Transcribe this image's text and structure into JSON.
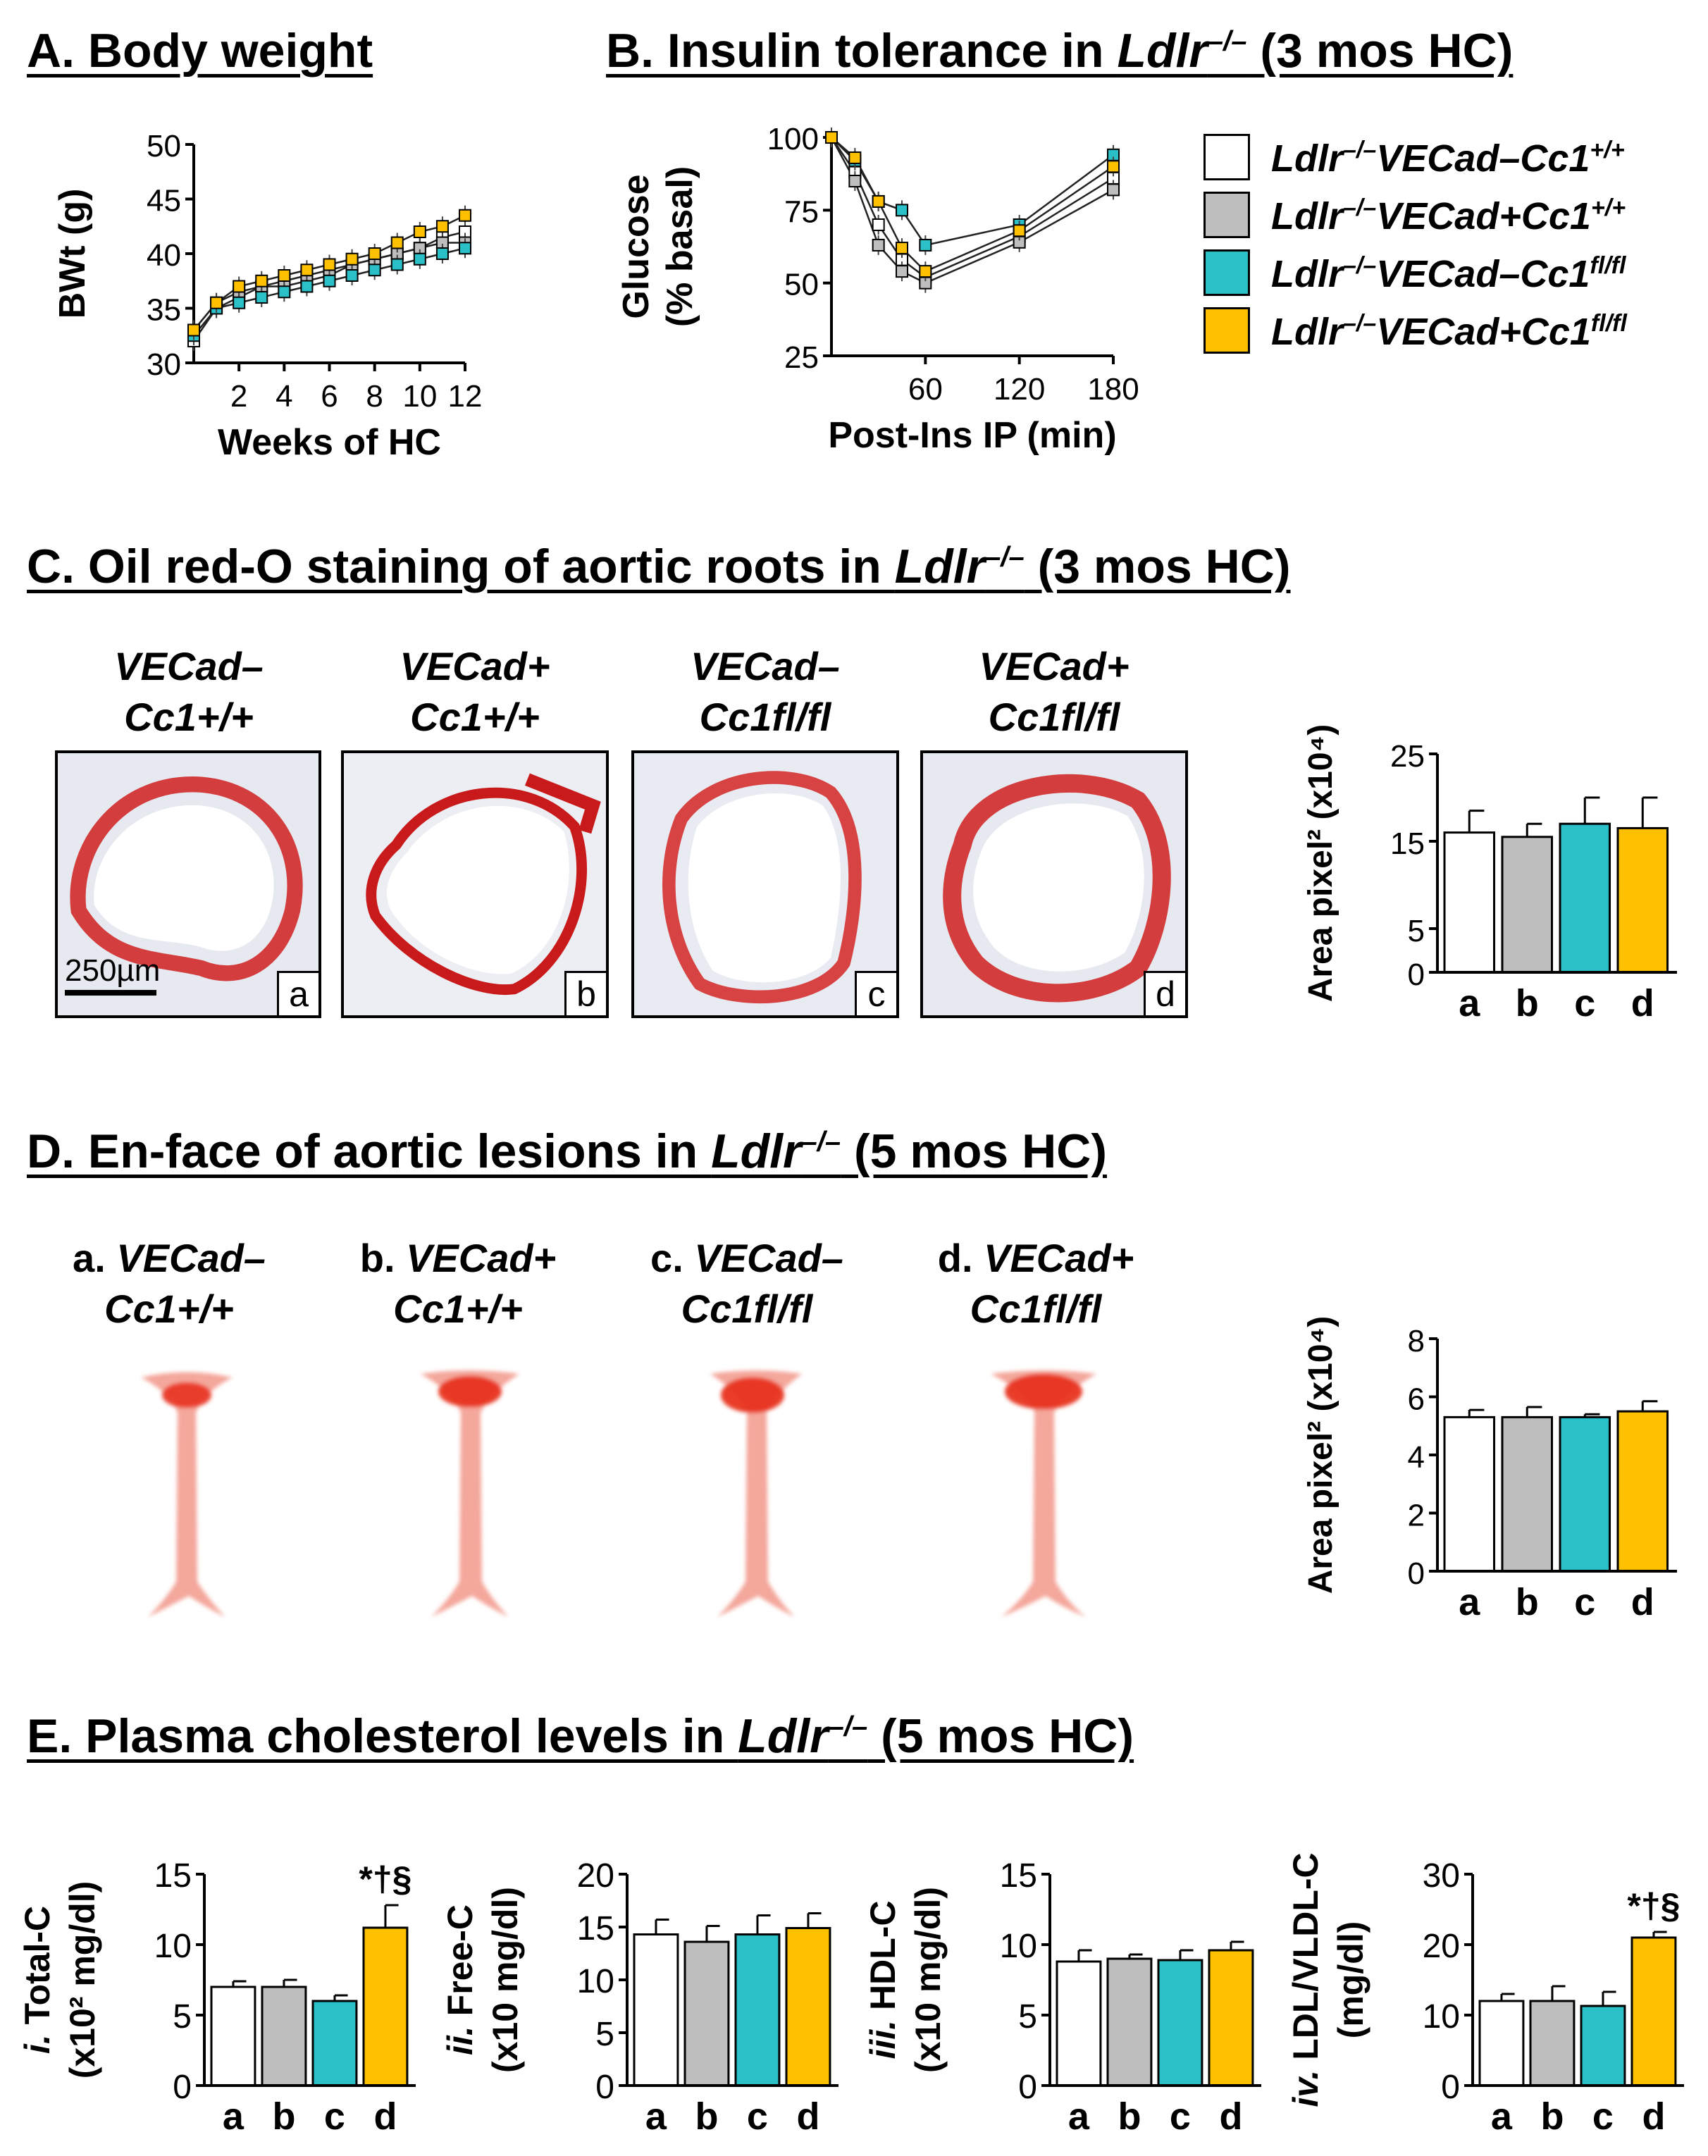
{
  "headings": {
    "a": "A. Body weight",
    "b_pre": "B. Insulin tolerance in ",
    "b_gene": "Ldlr",
    "b_sup": "–/–",
    "b_post": " (3 mos HC)",
    "c_pre": "C. Oil red-O staining of aortic roots in ",
    "c_gene": "Ldlr",
    "c_sup": "–/–",
    "c_post": " (3 mos HC)",
    "d_pre": "D. En-face of aortic lesions in ",
    "d_gene": "Ldlr",
    "d_sup": "–/–",
    "d_post": " (5 mos HC)",
    "e_pre": "E. Plasma cholesterol levels in ",
    "e_gene": "Ldlr",
    "e_sup": "–/–",
    "e_post": " (5 mos HC)"
  },
  "legend": [
    {
      "prefix": "Ldlr",
      "sup1": "–/–",
      "body": "VECad–Cc1",
      "sup2": "+/+",
      "color": "#ffffff"
    },
    {
      "prefix": "Ldlr",
      "sup1": "–/–",
      "body": "VECad+Cc1",
      "sup2": "+/+",
      "color": "#bebebe"
    },
    {
      "prefix": "Ldlr",
      "sup1": "–/–",
      "body": "VECad–Cc1",
      "sup2": "fl/fl",
      "color": "#2bbfc8"
    },
    {
      "prefix": "Ldlr",
      "sup1": "–/–",
      "body": "VECad+Cc1",
      "sup2": "fl/fl",
      "color": "#ffc000"
    }
  ],
  "colors": {
    "a": "#ffffff",
    "b": "#bebebe",
    "c": "#2bbfc8",
    "d": "#ffc000"
  },
  "panel_c": {
    "labels": [
      {
        "line1": "VECad–",
        "line2": "Cc1+/+",
        "letter": "a"
      },
      {
        "line1": "VECad+",
        "line2": "Cc1+/+",
        "letter": "b"
      },
      {
        "line1": "VECad–",
        "line2": "Cc1fl/fl",
        "letter": "c"
      },
      {
        "line1": "VECad+",
        "line2": "Cc1fl/fl",
        "letter": "d"
      }
    ],
    "scale_bar": "250µm"
  },
  "panel_d": {
    "labels": [
      {
        "prefix": "a. ",
        "line1": "VECad–",
        "line2": "Cc1+/+"
      },
      {
        "prefix": "b. ",
        "line1": "VECad+",
        "line2": "Cc1+/+"
      },
      {
        "prefix": "c. ",
        "line1": "VECad–",
        "line2": "Cc1fl/fl"
      },
      {
        "prefix": "d. ",
        "line1": "VECad+",
        "line2": "Cc1fl/fl"
      }
    ]
  },
  "chart_data": [
    {
      "id": "A",
      "type": "line",
      "title": "A. Body weight",
      "xlabel": "Weeks of HC",
      "ylabel": "BWt (g)",
      "xlim": [
        0,
        12
      ],
      "ylim": [
        30,
        50
      ],
      "xticks": [
        2,
        4,
        6,
        8,
        10,
        12
      ],
      "yticks": [
        30,
        35,
        40,
        45,
        50
      ],
      "x": [
        0,
        1,
        2,
        3,
        4,
        5,
        6,
        7,
        8,
        9,
        10,
        11,
        12
      ],
      "series": [
        {
          "name": "VECad–Cc1+/+",
          "color": "#ffffff",
          "values": [
            32,
            35,
            36,
            37,
            37,
            37.5,
            38,
            39,
            39.5,
            40,
            40.5,
            41.5,
            42
          ]
        },
        {
          "name": "VECad+Cc1+/+",
          "color": "#bebebe",
          "values": [
            33,
            35.5,
            36.5,
            37,
            37.5,
            38,
            38.5,
            39,
            39.5,
            40,
            40.5,
            41,
            41
          ]
        },
        {
          "name": "VECad–Cc1fl/fl",
          "color": "#2bbfc8",
          "values": [
            32.5,
            35,
            35.5,
            36,
            36.5,
            37,
            37.5,
            38,
            38.5,
            39,
            39.5,
            40,
            40.5
          ]
        },
        {
          "name": "VECad+Cc1fl/fl",
          "color": "#ffc000",
          "values": [
            33,
            35.5,
            37,
            37.5,
            38,
            38.5,
            39,
            39.5,
            40,
            41,
            42,
            42.5,
            43.5
          ]
        }
      ]
    },
    {
      "id": "B",
      "type": "line",
      "xlabel": "Post-Ins IP (min)",
      "ylabel_line1": "Glucose",
      "ylabel_line2": "(% basal)",
      "xlim": [
        0,
        180
      ],
      "ylim": [
        25,
        100
      ],
      "xticks": [
        60,
        120,
        180
      ],
      "yticks": [
        25,
        50,
        75,
        100
      ],
      "x": [
        0,
        15,
        30,
        45,
        60,
        120,
        180
      ],
      "series": [
        {
          "name": "VECad–Cc1+/+",
          "color": "#ffffff",
          "values": [
            100,
            88,
            70,
            58,
            52,
            66,
            86
          ]
        },
        {
          "name": "VECad+Cc1+/+",
          "color": "#bebebe",
          "values": [
            100,
            85,
            63,
            54,
            50,
            64,
            82
          ]
        },
        {
          "name": "VECad–Cc1fl/fl",
          "color": "#2bbfc8",
          "values": [
            100,
            92,
            78,
            75,
            63,
            70,
            94
          ]
        },
        {
          "name": "VECad+Cc1fl/fl",
          "color": "#ffc000",
          "values": [
            100,
            93,
            78,
            62,
            54,
            68,
            90
          ]
        }
      ]
    },
    {
      "id": "C",
      "type": "bar",
      "ylabel": "Area pixel² (x10⁴)",
      "categories": [
        "a",
        "b",
        "c",
        "d"
      ],
      "values": [
        16,
        15.5,
        17,
        16.5
      ],
      "errors": [
        2.5,
        1.5,
        3,
        3.5
      ],
      "ylim": [
        0,
        25
      ],
      "yticks": [
        0,
        5,
        15,
        25
      ]
    },
    {
      "id": "D",
      "type": "bar",
      "ylabel": "Area pixel² (x10⁴)",
      "categories": [
        "a",
        "b",
        "c",
        "d"
      ],
      "values": [
        5.3,
        5.3,
        5.3,
        5.5
      ],
      "errors": [
        0.25,
        0.35,
        0.1,
        0.35
      ],
      "ylim": [
        0,
        8
      ],
      "yticks": [
        0,
        2,
        4,
        6,
        8
      ]
    },
    {
      "id": "E_i",
      "type": "bar",
      "ylabel_prefix": "i.",
      "ylabel_line1": "Total-C",
      "ylabel_line2": "(x10² mg/dl)",
      "categories": [
        "a",
        "b",
        "c",
        "d"
      ],
      "values": [
        7,
        7,
        6,
        11.2
      ],
      "errors": [
        0.4,
        0.5,
        0.4,
        1.6
      ],
      "ylim": [
        0,
        15
      ],
      "yticks": [
        0,
        5,
        10,
        15
      ],
      "annotation": "*†§"
    },
    {
      "id": "E_ii",
      "type": "bar",
      "ylabel_prefix": "ii.",
      "ylabel_line1": "Free-C",
      "ylabel_line2": "(x10 mg/dl)",
      "categories": [
        "a",
        "b",
        "c",
        "d"
      ],
      "values": [
        14.3,
        13.6,
        14.3,
        14.9
      ],
      "errors": [
        1.4,
        1.5,
        1.8,
        1.4
      ],
      "ylim": [
        0,
        20
      ],
      "yticks": [
        0,
        5,
        10,
        15,
        20
      ]
    },
    {
      "id": "E_iii",
      "type": "bar",
      "ylabel_prefix": "iii.",
      "ylabel_line1": "HDL-C",
      "ylabel_line2": "(x10 mg/dl)",
      "categories": [
        "a",
        "b",
        "c",
        "d"
      ],
      "values": [
        8.8,
        9,
        8.9,
        9.6
      ],
      "errors": [
        0.8,
        0.3,
        0.7,
        0.6
      ],
      "ylim": [
        0,
        15
      ],
      "yticks": [
        0,
        5,
        10,
        15
      ]
    },
    {
      "id": "E_iv",
      "type": "bar",
      "ylabel_prefix": "iv.",
      "ylabel_line1": "LDL/VLDL-C",
      "ylabel_line2": "(mg/dl)",
      "categories": [
        "a",
        "b",
        "c",
        "d"
      ],
      "values": [
        12,
        12,
        11.3,
        21
      ],
      "errors": [
        1,
        2.1,
        2,
        0.8
      ],
      "ylim": [
        0,
        30
      ],
      "yticks": [
        0,
        10,
        20,
        30
      ],
      "annotation": "*†§"
    }
  ]
}
